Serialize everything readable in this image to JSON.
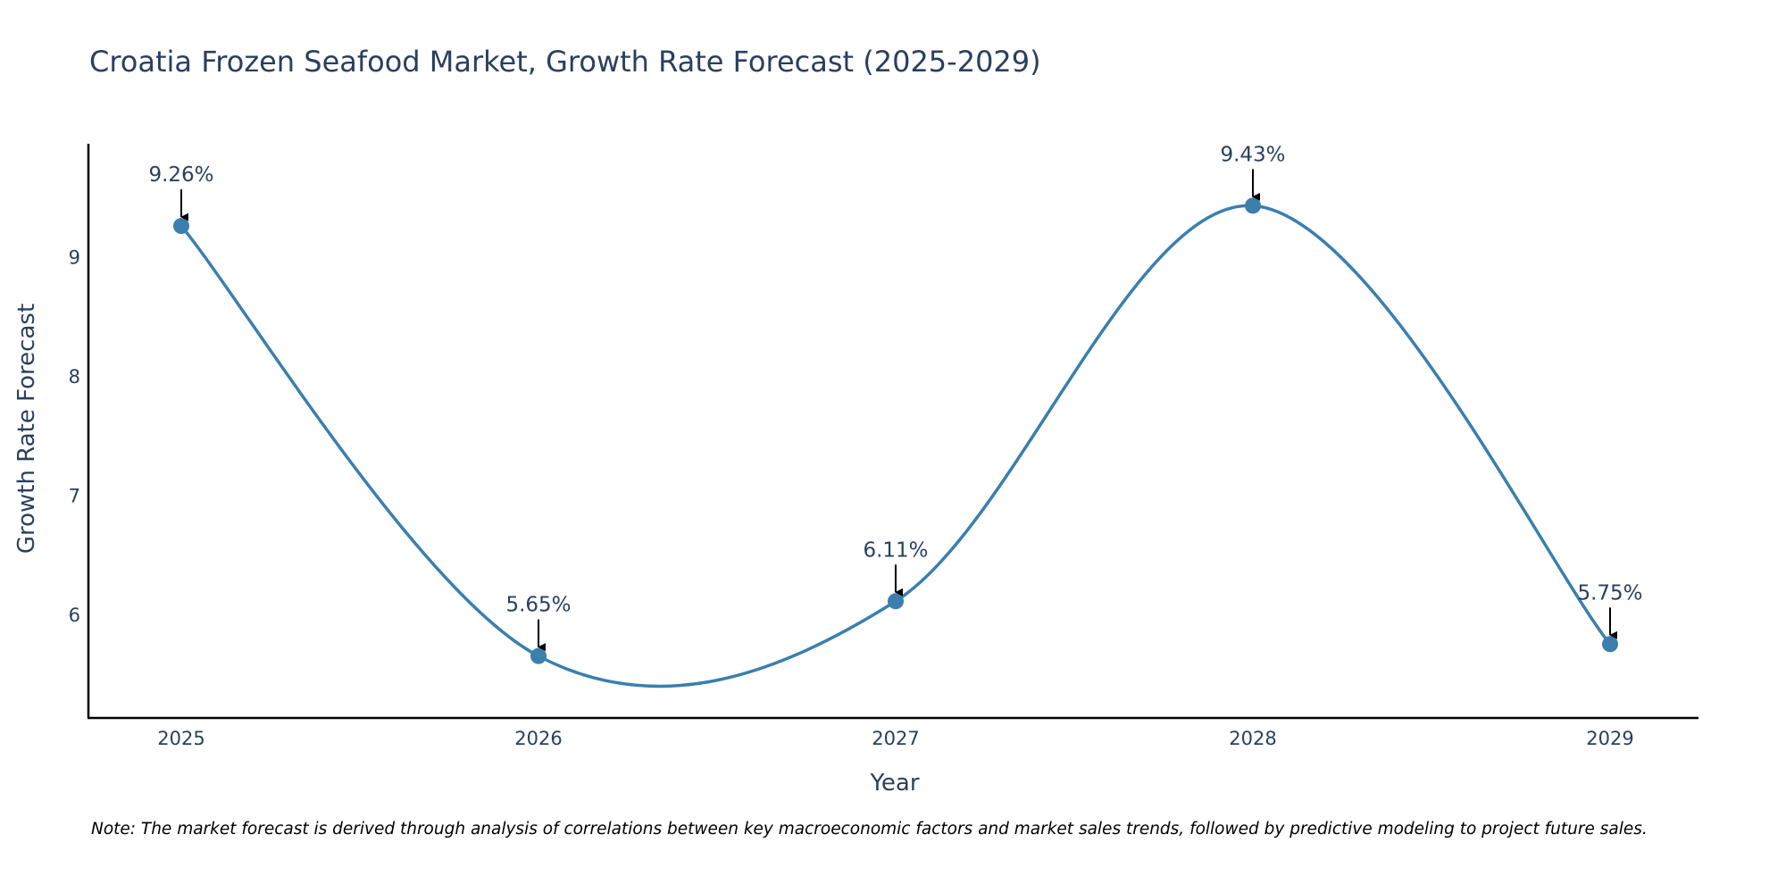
{
  "chart_data": {
    "type": "line",
    "title": "Croatia Frozen Seafood Market, Growth Rate Forecast (2025-2029)",
    "xlabel": "Year",
    "ylabel": "Growth Rate Forecast",
    "categories": [
      "2025",
      "2026",
      "2027",
      "2028",
      "2029"
    ],
    "values": [
      9.26,
      5.65,
      6.11,
      9.43,
      5.75
    ],
    "data_labels": [
      "9.26%",
      "5.65%",
      "6.11%",
      "9.43%",
      "5.75%"
    ],
    "y_ticks": [
      6,
      7,
      8,
      9
    ],
    "ylim": [
      5.13,
      9.95
    ],
    "line_color": "#3a7fae",
    "smoothing": "spline",
    "grid": false
  },
  "note": "Note: The market forecast is derived through analysis of correlations between key macroeconomic factors and market sales trends, followed by predictive modeling to project future sales."
}
